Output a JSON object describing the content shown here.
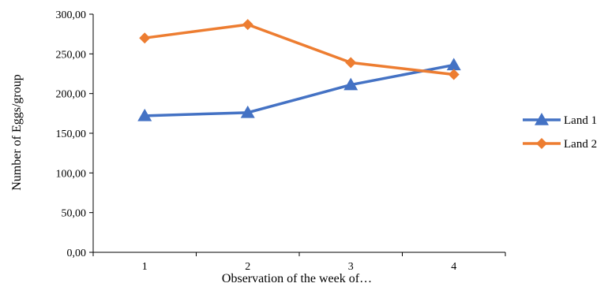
{
  "chart_data": {
    "type": "line",
    "xlabel": "Observation of the week of…",
    "ylabel": "Number of Eggs/group",
    "categories": [
      "1",
      "2",
      "3",
      "4"
    ],
    "ylim": [
      0,
      300
    ],
    "yticks": [
      "0,00",
      "50,00",
      "100,00",
      "150,00",
      "200,00",
      "250,00",
      "300,00"
    ],
    "grid": false,
    "legend_position": "right",
    "series": [
      {
        "name": "Land 1",
        "values": [
          172,
          176,
          211,
          236
        ],
        "color": "#4472C4",
        "marker": "triangle"
      },
      {
        "name": "Land 2",
        "values": [
          270,
          287,
          239,
          224
        ],
        "color": "#ED7D31",
        "marker": "diamond"
      }
    ]
  }
}
